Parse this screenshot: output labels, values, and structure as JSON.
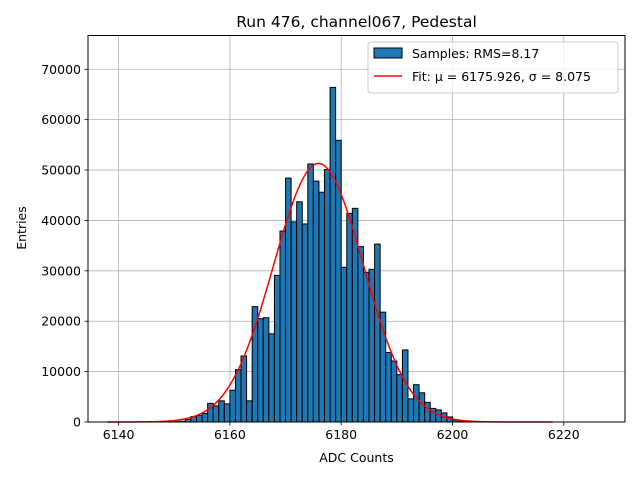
{
  "chart_data": {
    "type": "bar",
    "title": "Run 476, channel067, Pedestal",
    "xlabel": "ADC Counts",
    "ylabel": "Entries",
    "xlim": [
      6134.5,
      6231.0
    ],
    "ylim": [
      0,
      76700
    ],
    "xticks": [
      6140,
      6160,
      6180,
      6200,
      6220
    ],
    "yticks": [
      0,
      10000,
      20000,
      30000,
      40000,
      50000,
      60000,
      70000
    ],
    "grid": true,
    "legend_position": "top-right",
    "bin_width": 1,
    "series": [
      {
        "name": "Samples: RMS=8.17",
        "type": "histogram",
        "color": "#1f77b4",
        "bins": [
          [
            6150,
            70
          ],
          [
            6151,
            150
          ],
          [
            6152,
            500
          ],
          [
            6153,
            1100
          ],
          [
            6154,
            1300
          ],
          [
            6155,
            1700
          ],
          [
            6156,
            3700
          ],
          [
            6157,
            3200
          ],
          [
            6158,
            4200
          ],
          [
            6159,
            3600
          ],
          [
            6160,
            6300
          ],
          [
            6161,
            10400
          ],
          [
            6162,
            13100
          ],
          [
            6163,
            4200
          ],
          [
            6164,
            22900
          ],
          [
            6165,
            20500
          ],
          [
            6166,
            20700
          ],
          [
            6167,
            17500
          ],
          [
            6168,
            29100
          ],
          [
            6169,
            37900
          ],
          [
            6170,
            48400
          ],
          [
            6171,
            39700
          ],
          [
            6172,
            43700
          ],
          [
            6173,
            39300
          ],
          [
            6174,
            51200
          ],
          [
            6175,
            47800
          ],
          [
            6176,
            45600
          ],
          [
            6177,
            50100
          ],
          [
            6178,
            66400
          ],
          [
            6179,
            55900
          ],
          [
            6180,
            30700
          ],
          [
            6181,
            41400
          ],
          [
            6182,
            42400
          ],
          [
            6183,
            34800
          ],
          [
            6184,
            29700
          ],
          [
            6185,
            30300
          ],
          [
            6186,
            35300
          ],
          [
            6187,
            21800
          ],
          [
            6188,
            13800
          ],
          [
            6189,
            12100
          ],
          [
            6190,
            9400
          ],
          [
            6191,
            14300
          ],
          [
            6192,
            4600
          ],
          [
            6193,
            7400
          ],
          [
            6194,
            5800
          ],
          [
            6195,
            3900
          ],
          [
            6196,
            2700
          ],
          [
            6197,
            2400
          ],
          [
            6198,
            1800
          ],
          [
            6199,
            1000
          ],
          [
            6200,
            400
          ],
          [
            6201,
            150
          ],
          [
            6202,
            60
          ]
        ]
      },
      {
        "name": "Fit: μ = 6175.926, σ = 8.075",
        "type": "gaussian_fit",
        "color": "#ff0000",
        "mu": 6175.926,
        "sigma": 8.075,
        "amplitude": 51300,
        "x_range": [
          6138,
          6218
        ]
      }
    ],
    "legend": [
      {
        "label": "Samples: RMS=8.17",
        "kind": "patch"
      },
      {
        "label": "Fit: μ = 6175.926, σ = 8.075",
        "kind": "line"
      }
    ]
  }
}
